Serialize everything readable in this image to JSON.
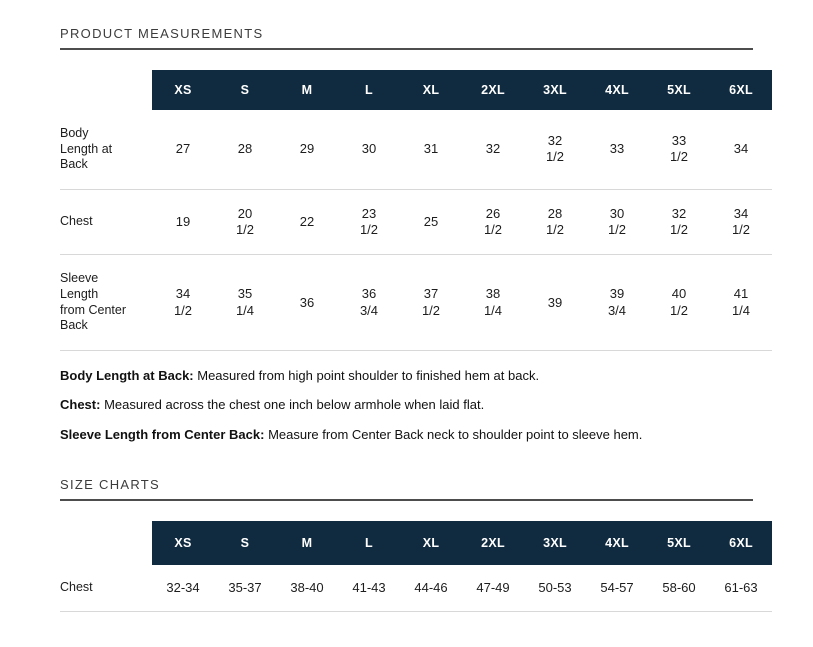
{
  "sections": {
    "measurements_title": "PRODUCT MEASUREMENTS",
    "size_charts_title": "SIZE CHARTS"
  },
  "colors": {
    "header_bg": "#102b40",
    "header_text": "#ffffff",
    "rule": "#4d4d4d",
    "separator": "#d8d8d8"
  },
  "measurements_table": {
    "sizes": [
      "XS",
      "S",
      "M",
      "L",
      "XL",
      "2XL",
      "3XL",
      "4XL",
      "5XL",
      "6XL"
    ],
    "rows": [
      {
        "label": "Body Length at Back",
        "values": [
          "27",
          "28",
          "29",
          "30",
          "31",
          "32",
          "32\n1/2",
          "33",
          "33\n1/2",
          "34"
        ]
      },
      {
        "label": "Chest",
        "values": [
          "19",
          "20\n1/2",
          "22",
          "23\n1/2",
          "25",
          "26\n1/2",
          "28\n1/2",
          "30\n1/2",
          "32\n1/2",
          "34\n1/2"
        ]
      },
      {
        "label": "Sleeve Length from Center Back",
        "values": [
          "34\n1/2",
          "35\n1/4",
          "36",
          "36\n3/4",
          "37\n1/2",
          "38\n1/4",
          "39",
          "39\n3/4",
          "40\n1/2",
          "41\n1/4"
        ]
      }
    ]
  },
  "descriptions": [
    {
      "term": "Body Length at Back:",
      "text": "Measured from high point shoulder to finished hem at back."
    },
    {
      "term": "Chest:",
      "text": "Measured across the chest one inch below armhole when laid flat."
    },
    {
      "term": "Sleeve Length from Center Back:",
      "text": "Measure from Center Back neck to shoulder point to sleeve hem."
    }
  ],
  "size_chart_table": {
    "sizes": [
      "XS",
      "S",
      "M",
      "L",
      "XL",
      "2XL",
      "3XL",
      "4XL",
      "5XL",
      "6XL"
    ],
    "rows": [
      {
        "label": "Chest",
        "values": [
          "32-34",
          "35-37",
          "38-40",
          "41-43",
          "44-46",
          "47-49",
          "50-53",
          "54-57",
          "58-60",
          "61-63"
        ]
      }
    ]
  }
}
